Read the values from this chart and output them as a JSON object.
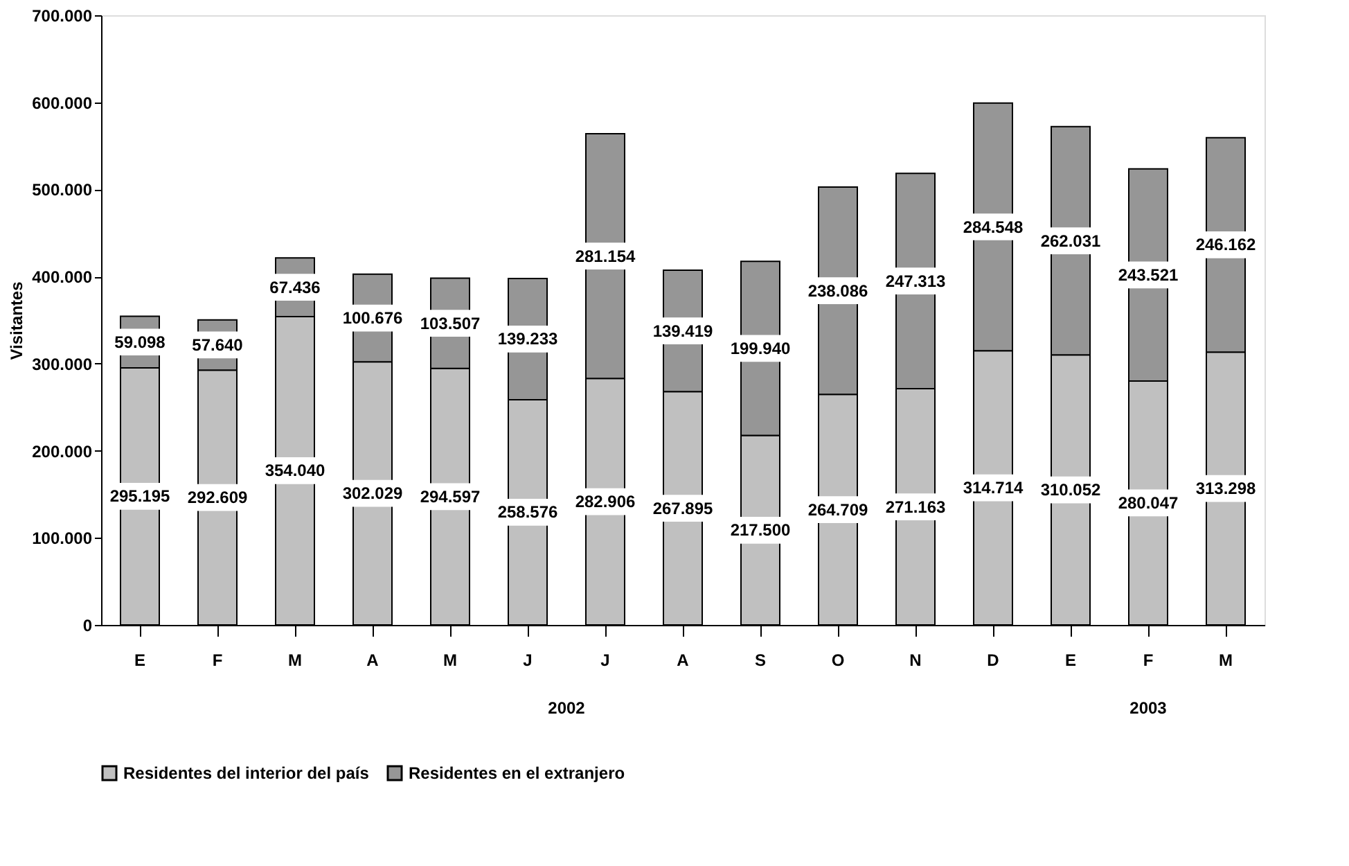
{
  "chart_data": {
    "type": "bar",
    "stacked": true,
    "ylabel": "Visitantes",
    "categories": [
      "E",
      "F",
      "M",
      "A",
      "M",
      "J",
      "J",
      "A",
      "S",
      "O",
      "N",
      "D",
      "E",
      "F",
      "M"
    ],
    "series": [
      {
        "name": "Residentes del interior del país",
        "color": "#c0c0c0",
        "values": [
          295195,
          292609,
          354040,
          302029,
          294597,
          258576,
          282906,
          267895,
          217500,
          264709,
          271163,
          314714,
          310052,
          280047,
          313298
        ],
        "value_labels": [
          "295.195",
          "292.609",
          "354.040",
          "302.029",
          "294.597",
          "258.576",
          "282.906",
          "267.895",
          "217.500",
          "264.709",
          "271.163",
          "314.714",
          "310.052",
          "280.047",
          "313.298"
        ]
      },
      {
        "name": "Residentes en el extranjero",
        "color": "#969696",
        "values": [
          59098,
          57640,
          67436,
          100676,
          103507,
          139233,
          281154,
          139419,
          199940,
          238086,
          247313,
          284548,
          262031,
          243521,
          246162
        ],
        "value_labels": [
          "59.098",
          "57.640",
          "67.436",
          "100.676",
          "103.507",
          "139.233",
          "281.154",
          "139.419",
          "199.940",
          "238.086",
          "247.313",
          "284.548",
          "262.031",
          "243.521",
          "246.162"
        ]
      }
    ],
    "ylim": [
      0,
      700000
    ],
    "yticks": [
      {
        "value": 0,
        "label": "0"
      },
      {
        "value": 100000,
        "label": "100.000"
      },
      {
        "value": 200000,
        "label": "200.000"
      },
      {
        "value": 300000,
        "label": "300.000"
      },
      {
        "value": 400000,
        "label": "400.000"
      },
      {
        "value": 500000,
        "label": "500.000"
      },
      {
        "value": 600000,
        "label": "600.000"
      },
      {
        "value": 700000,
        "label": "700.000"
      }
    ],
    "annotations": [
      "2002",
      "2003"
    ],
    "grid": false,
    "legend": "bottom"
  }
}
